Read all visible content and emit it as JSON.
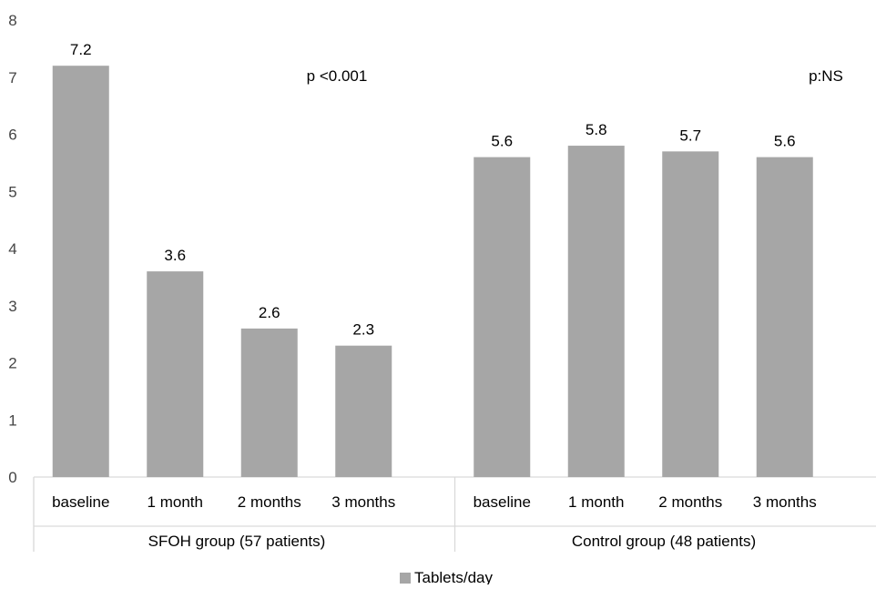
{
  "chart_data": {
    "type": "bar",
    "groups": [
      {
        "label": "SFOH group (57 patients)",
        "annotation": "p <0.001",
        "categories": [
          "baseline",
          "1 month",
          "2 months",
          "3 months"
        ],
        "values": [
          7.2,
          3.6,
          2.6,
          2.3
        ],
        "value_labels": [
          "7.2",
          "3.6",
          "2.6",
          "2.3"
        ]
      },
      {
        "label": "Control group (48 patients)",
        "annotation": "p:NS",
        "categories": [
          "baseline",
          "1 month",
          "2 months",
          "3 months"
        ],
        "values": [
          5.6,
          5.8,
          5.7,
          5.6
        ],
        "value_labels": [
          "5.6",
          "5.8",
          "5.7",
          "5.6"
        ]
      }
    ],
    "series": [
      {
        "name": "Tablets/day",
        "color": "#a6a6a6"
      }
    ],
    "yticks": [
      "0",
      "1",
      "2",
      "3",
      "4",
      "5",
      "6",
      "7",
      "8"
    ],
    "ylim": [
      0,
      8
    ],
    "grid": false,
    "legend_position": "bottom"
  }
}
